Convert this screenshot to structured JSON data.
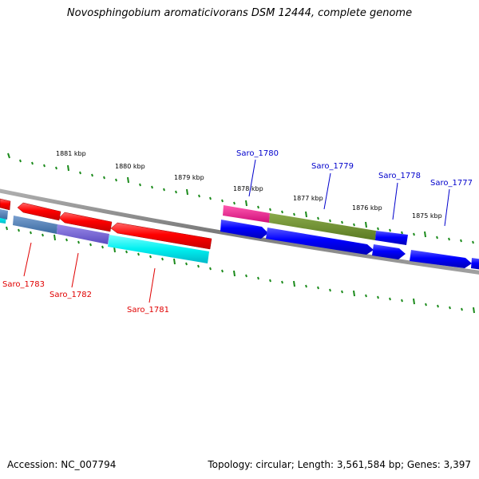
{
  "title": "Novosphingobium aromaticivorans DSM 12444, complete genome",
  "footer": {
    "accession": "Accession: NC_007794",
    "summary": "Topology: circular; Length: 3,561,584 bp; Genes: 3,397"
  },
  "kbp_labels": [
    "1881 kbp",
    "1880 kbp",
    "1879 kbp",
    "1878 kbp",
    "1877 kbp",
    "1876 kbp",
    "1875 kbp"
  ],
  "gene_labels": [
    {
      "text": "Saro_1783",
      "color": "#e00000"
    },
    {
      "text": "Saro_1782",
      "color": "#e00000"
    },
    {
      "text": "Saro_1781",
      "color": "#e00000"
    },
    {
      "text": "Saro_1780",
      "color": "#0000cc"
    },
    {
      "text": "Saro_1779",
      "color": "#0000cc"
    },
    {
      "text": "Saro_1778",
      "color": "#0000cc"
    },
    {
      "text": "Saro_1777",
      "color": "#0000cc"
    }
  ],
  "colors": {
    "reverse_gene": "#ff0000",
    "forward_gene": "#0000ff",
    "backbone": "#808080",
    "ticks": "#1a8a1a"
  }
}
